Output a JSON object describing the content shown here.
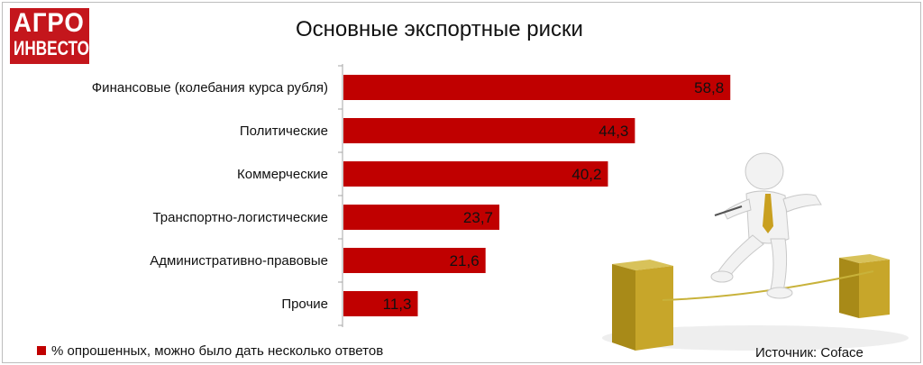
{
  "logo": {
    "line1": "АГРО",
    "line2": "ИНВЕСТОР"
  },
  "colors": {
    "bar": "#c00000",
    "logo": "#c4161c"
  },
  "chart_data": {
    "type": "bar",
    "orientation": "horizontal",
    "title": "Основные экспортные риски",
    "categories": [
      "Финансовые (колебания курса рубля)",
      "Политические",
      "Коммерческие",
      "Транспортно-логистические",
      "Административно-правовые",
      "Прочие"
    ],
    "values": [
      58.8,
      44.3,
      40.2,
      23.7,
      21.6,
      11.3
    ],
    "value_labels": [
      "58,8",
      "44,3",
      "40,2",
      "23,7",
      "21,6",
      "11,3"
    ],
    "series": [
      {
        "name": "% опрошенных, можно было дать несколько ответов",
        "values": [
          58.8,
          44.3,
          40.2,
          23.7,
          21.6,
          11.3
        ]
      }
    ],
    "legend_position": "bottom-left",
    "grid": false
  },
  "source": "Источник: Coface"
}
